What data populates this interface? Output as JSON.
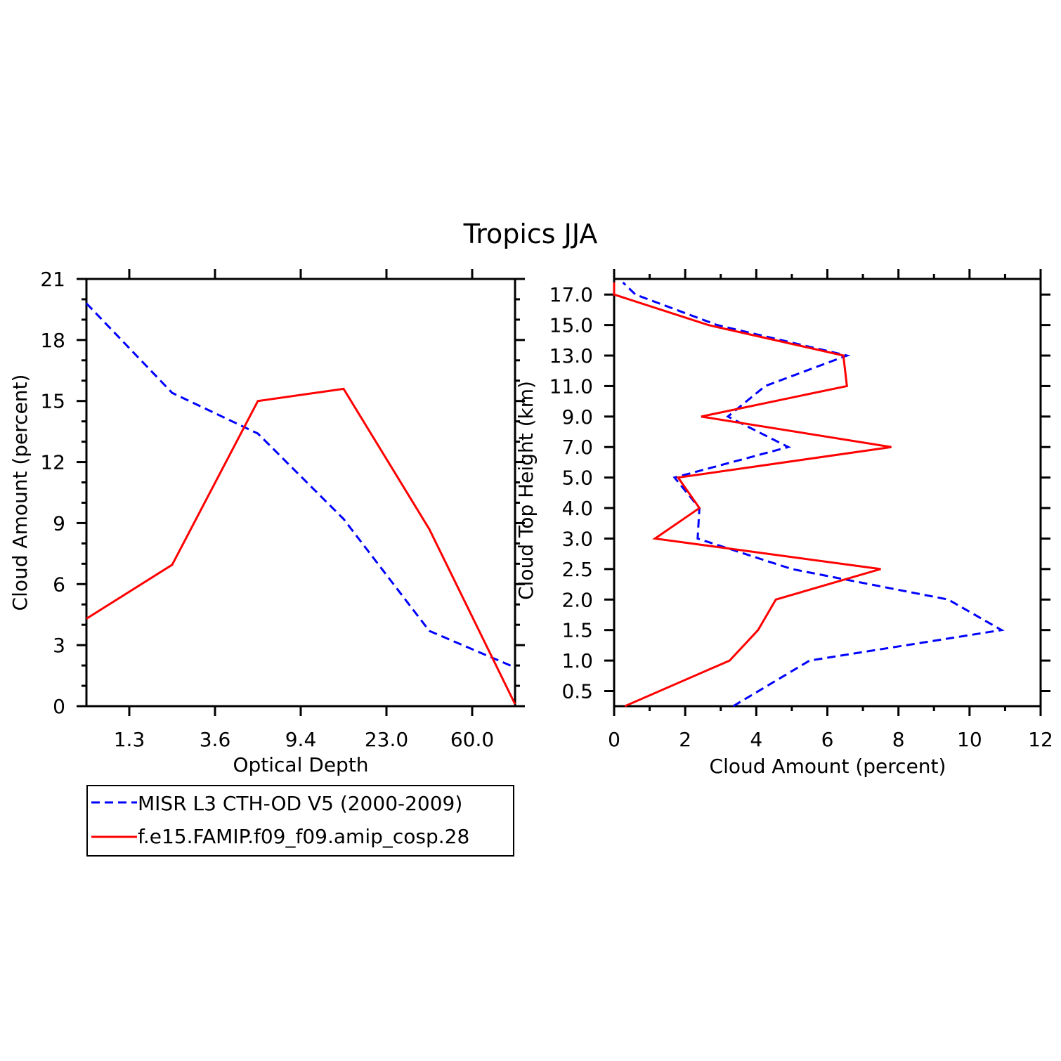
{
  "title": "Tropics JJA",
  "colors": {
    "obs": "#0000ff",
    "model": "#ff0000",
    "axis": "#000000"
  },
  "legend": {
    "entries": [
      {
        "label": "MISR L3 CTH-OD V5 (2000-2009)",
        "color": "#0000ff",
        "style": "dashed"
      },
      {
        "label": "f.e15.FAMIP.f09_f09.amip_cosp.28",
        "color": "#ff0000",
        "style": "solid"
      }
    ]
  },
  "chart_data": [
    {
      "type": "line",
      "xlabel": "Optical Depth",
      "ylabel": "Cloud Amount (percent)",
      "ylim": [
        0,
        21
      ],
      "yticks": [
        "0",
        "3",
        "6",
        "9",
        "12",
        "15",
        "18",
        "21"
      ],
      "categories": [
        "0.3",
        "1.3",
        "2.45",
        "3.6",
        "6.5",
        "9.4",
        "16.2",
        "23.0",
        "41.5",
        "60.0",
        "80.0"
      ],
      "xtick_labels": [
        "1.3",
        "3.6",
        "9.4",
        "23.0",
        "60.0"
      ],
      "series": [
        {
          "name": "MISR L3 CTH-OD V5 (2000-2009)",
          "style": "dashed",
          "color": "#0000ff",
          "values": [
            19.8,
            null,
            15.4,
            null,
            13.4,
            null,
            9.2,
            null,
            3.7,
            null,
            1.9
          ]
        },
        {
          "name": "f.e15.FAMIP.f09_f09.amip_cosp.28",
          "style": "solid",
          "color": "#ff0000",
          "values": [
            4.3,
            null,
            6.95,
            null,
            15.0,
            null,
            15.6,
            null,
            8.7,
            null,
            0.1
          ]
        }
      ]
    },
    {
      "type": "line",
      "xlabel": "Cloud Amount (percent)",
      "ylabel": "Cloud Top Height (km)",
      "xlim": [
        0,
        12
      ],
      "xticks": [
        "0",
        "2",
        "4",
        "6",
        "8",
        "10",
        "12"
      ],
      "ytick_labels": [
        "0.5",
        "1.0",
        "1.5",
        "2.0",
        "2.5",
        "3.0",
        "4.0",
        "5.0",
        "7.0",
        "9.0",
        "11.0",
        "13.0",
        "15.0",
        "17.0"
      ],
      "y": [
        0,
        0.5,
        1.0,
        1.5,
        2.0,
        2.5,
        3.0,
        4.0,
        5.0,
        7.0,
        9.0,
        11.0,
        13.0,
        15.0,
        17.0,
        17.5
      ],
      "series": [
        {
          "name": "MISR L3 CTH-OD V5 (2000-2009)",
          "style": "dashed",
          "color": "#0000ff",
          "values": [
            3.35,
            null,
            5.5,
            10.9,
            9.4,
            5.0,
            2.35,
            2.4,
            1.7,
            4.9,
            3.2,
            4.25,
            6.55,
            2.9,
            0.6,
            0.25
          ]
        },
        {
          "name": "f.e15.FAMIP.f09_f09.amip_cosp.28",
          "style": "solid",
          "color": "#ff0000",
          "values": [
            0.3,
            null,
            3.25,
            4.05,
            4.55,
            7.5,
            1.15,
            2.4,
            1.8,
            7.8,
            2.45,
            6.55,
            6.45,
            2.65,
            0.0,
            0.0
          ]
        }
      ]
    }
  ]
}
